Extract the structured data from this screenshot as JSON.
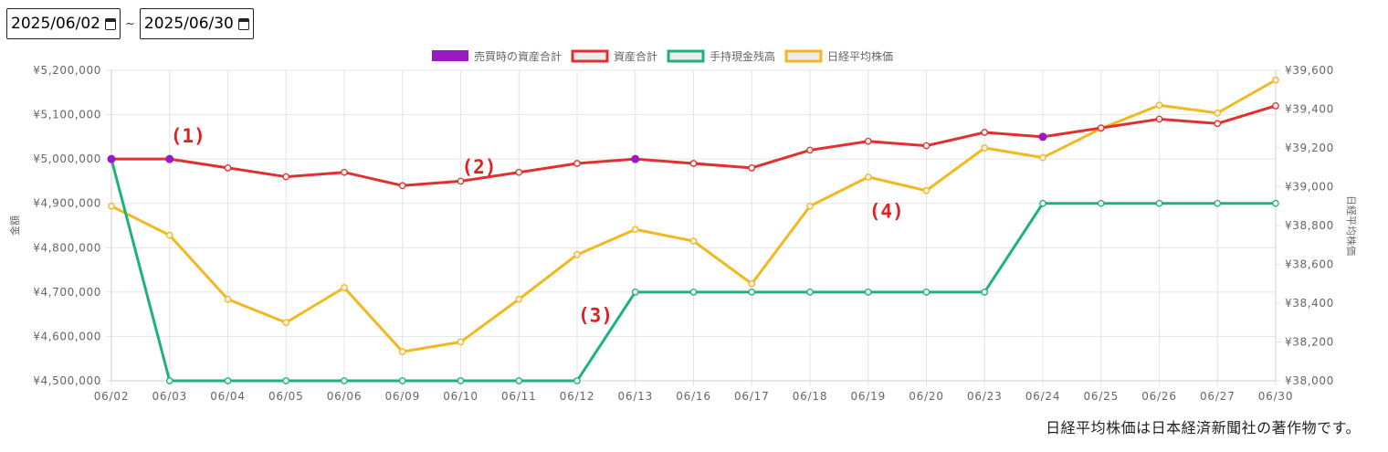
{
  "date_range": {
    "start": "2025/06/02",
    "separator": "~",
    "end": "2025/06/30"
  },
  "footer_note": "日経平均株価は日本経済新聞社の著作物です。",
  "chart_data": {
    "type": "line",
    "x": [
      "06/02",
      "06/03",
      "06/04",
      "06/05",
      "06/06",
      "06/09",
      "06/10",
      "06/11",
      "06/12",
      "06/13",
      "06/16",
      "06/17",
      "06/18",
      "06/19",
      "06/20",
      "06/23",
      "06/24",
      "06/25",
      "06/26",
      "06/27",
      "06/30"
    ],
    "ylabel_left": "金額",
    "ylabel_right": "日経平均株価",
    "ylim_left": [
      4500000,
      5200000
    ],
    "ylim_right": [
      38000,
      39600
    ],
    "yticks_left": [
      "¥4,500,000",
      "¥4,600,000",
      "¥4,700,000",
      "¥4,800,000",
      "¥4,900,000",
      "¥5,000,000",
      "¥5,100,000",
      "¥5,200,000"
    ],
    "yticks_right": [
      "¥38,000",
      "¥38,200",
      "¥38,400",
      "¥38,600",
      "¥38,800",
      "¥39,000",
      "¥39,200",
      "¥39,400",
      "¥39,600"
    ],
    "grid": true,
    "legend_position": "top",
    "series": [
      {
        "name": "売買時の資産合計",
        "axis": "left",
        "color": "#9b19c3",
        "kind": "points",
        "x": [
          "06/02",
          "06/03",
          "06/13",
          "06/24"
        ],
        "values": [
          5000000,
          5000000,
          5000000,
          5050000
        ]
      },
      {
        "name": "資産合計",
        "axis": "left",
        "color": "#e03030",
        "kind": "line",
        "values": [
          5000000,
          5000000,
          4980000,
          4960000,
          4970000,
          4940000,
          4950000,
          4970000,
          4990000,
          5000000,
          4990000,
          4980000,
          5020000,
          5040000,
          5030000,
          5060000,
          5050000,
          5070000,
          5090000,
          5080000,
          5120000
        ]
      },
      {
        "name": "手持現金残高",
        "axis": "left",
        "color": "#1fb080",
        "kind": "line",
        "values": [
          5000000,
          4500000,
          4500000,
          4500000,
          4500000,
          4500000,
          4500000,
          4500000,
          4500000,
          4700000,
          4700000,
          4700000,
          4700000,
          4700000,
          4700000,
          4700000,
          4900000,
          4900000,
          4900000,
          4900000,
          4900000
        ]
      },
      {
        "name": "日経平均株価",
        "axis": "right",
        "color": "#f2b91f",
        "kind": "line",
        "values": [
          38900,
          38750,
          38420,
          38300,
          38480,
          38150,
          38200,
          38420,
          38650,
          38780,
          38720,
          38500,
          38900,
          39050,
          38980,
          39200,
          39150,
          39300,
          39420,
          39380,
          39550
        ]
      }
    ],
    "annotations": [
      {
        "text": "(1)",
        "x": "06/03",
        "y": 5050000
      },
      {
        "text": "(2)",
        "x": "06/10",
        "y": 4980000
      },
      {
        "text": "(3)",
        "x": "06/12",
        "y": 4645000
      },
      {
        "text": "(4)",
        "x": "06/19",
        "y": 4880000
      }
    ]
  }
}
